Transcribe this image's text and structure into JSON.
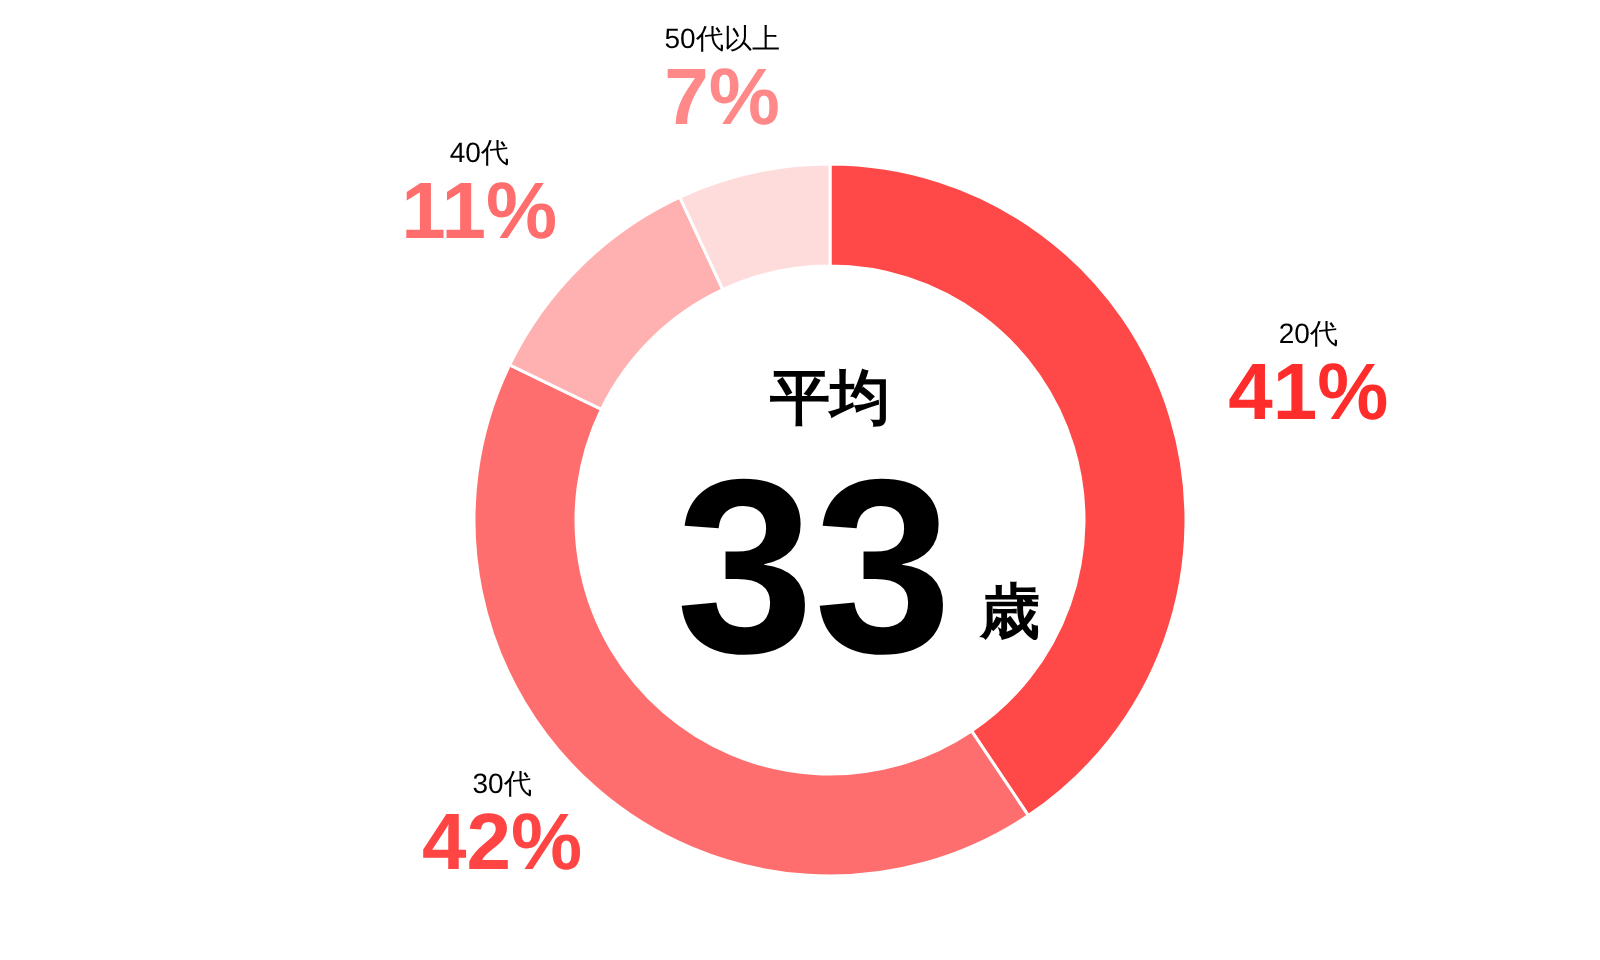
{
  "chart_data": {
    "type": "donut",
    "categories": [
      "20代",
      "30代",
      "40代",
      "50代以上"
    ],
    "values": [
      41,
      42,
      11,
      7
    ],
    "colors": [
      "#ff4848",
      "#ff6e6e",
      "#ffb0b0",
      "#ffdcdc"
    ],
    "value_labels": [
      "41%",
      "42%",
      "11%",
      "7%"
    ],
    "annotations": [
      "平均",
      "33",
      "歳"
    ]
  }
}
